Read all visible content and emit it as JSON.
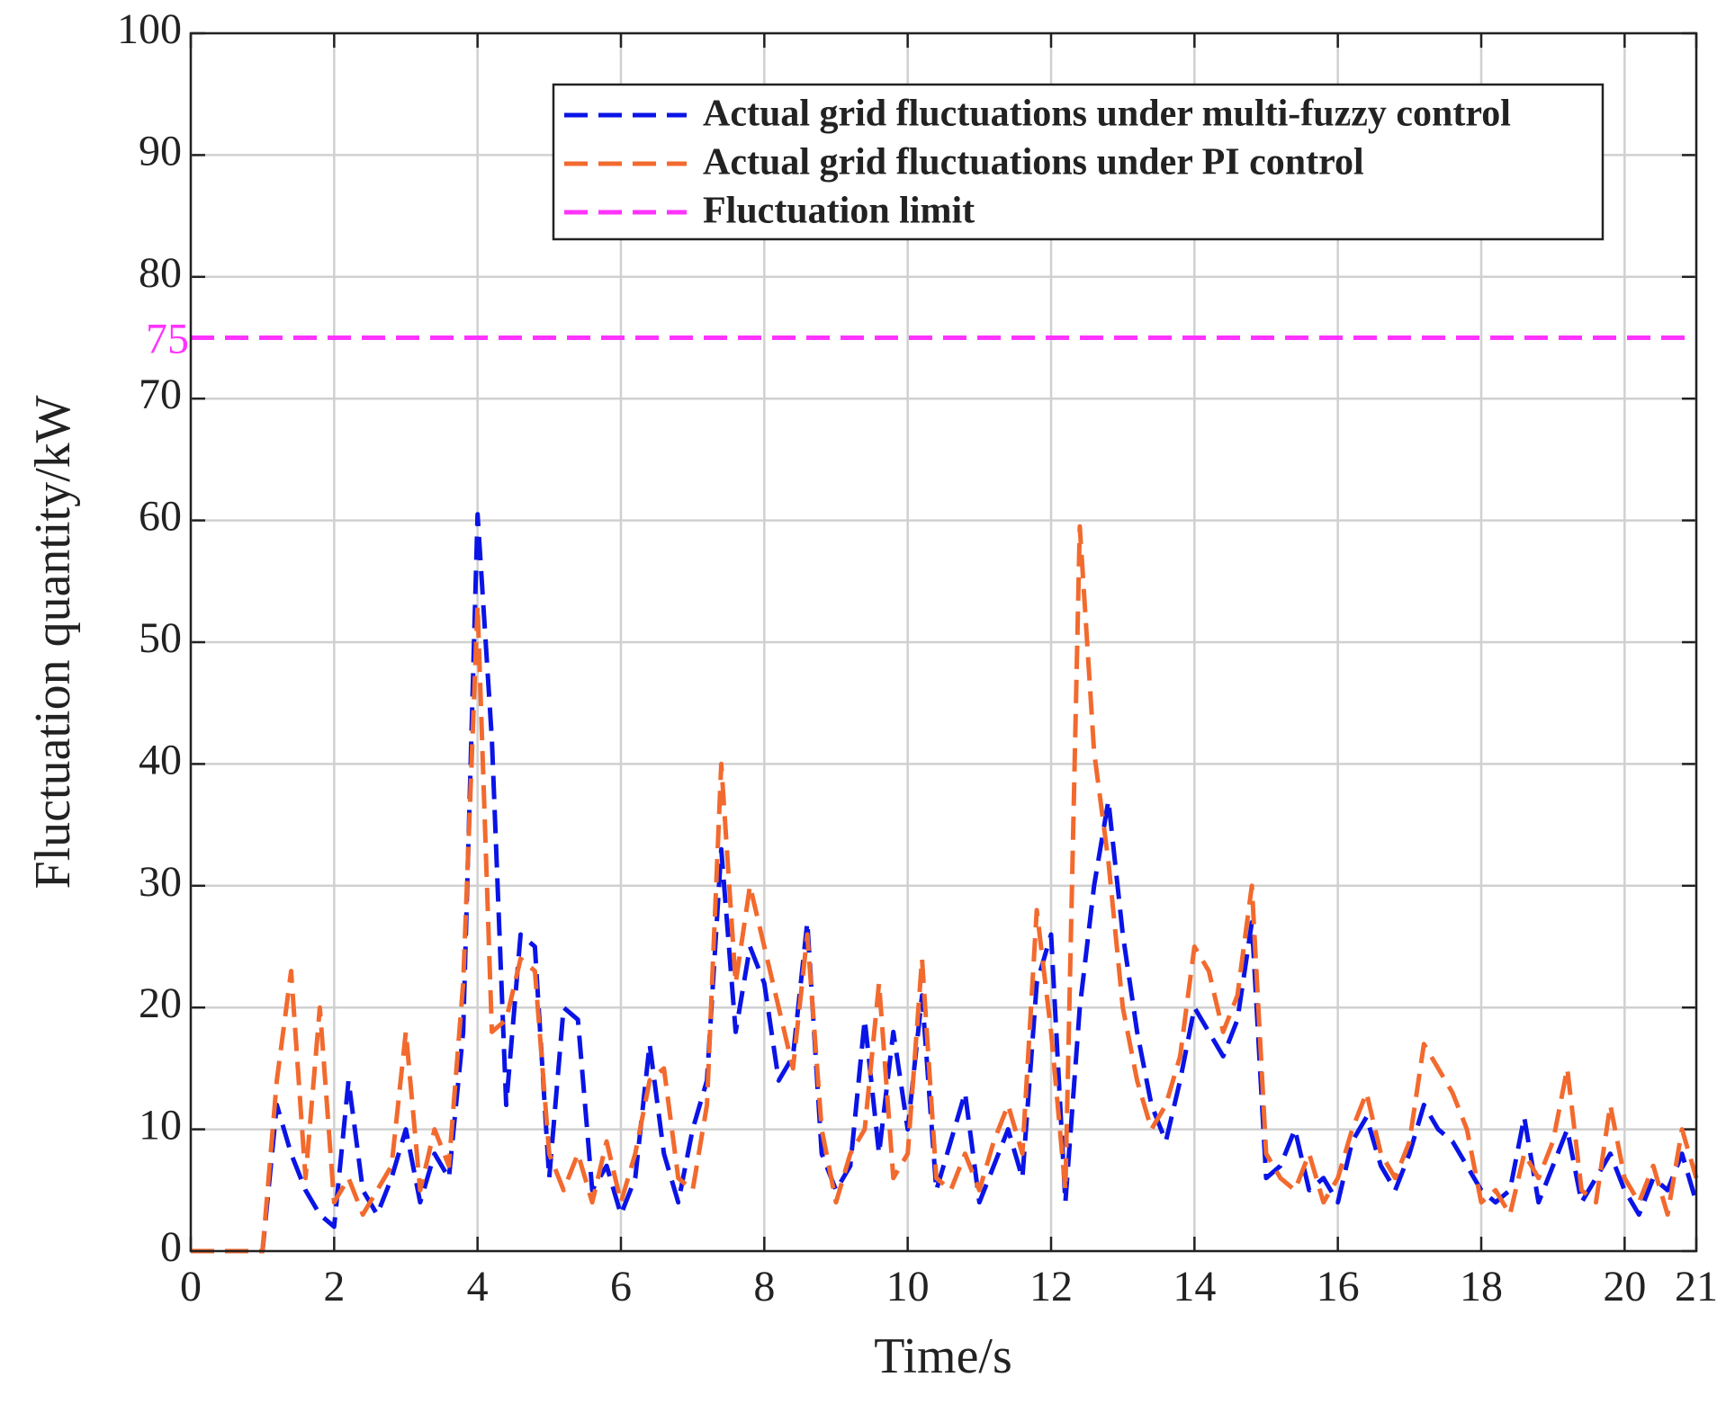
{
  "chart_data": {
    "type": "line",
    "xlabel": "Time/s",
    "ylabel": "Fluctuation quantity/kW",
    "x": [
      0,
      0.2,
      0.4,
      0.6,
      0.8,
      1.0,
      1.2,
      1.4,
      1.6,
      1.8,
      2.0,
      2.2,
      2.4,
      2.6,
      2.8,
      3.0,
      3.2,
      3.4,
      3.6,
      3.8,
      4.0,
      4.2,
      4.4,
      4.6,
      4.8,
      5.0,
      5.2,
      5.4,
      5.6,
      5.8,
      6.0,
      6.2,
      6.4,
      6.6,
      6.8,
      7.0,
      7.2,
      7.4,
      7.6,
      7.8,
      8.0,
      8.2,
      8.4,
      8.6,
      8.8,
      9.0,
      9.2,
      9.4,
      9.6,
      9.8,
      10.0,
      10.2,
      10.4,
      10.6,
      10.8,
      11.0,
      11.2,
      11.4,
      11.6,
      11.8,
      12.0,
      12.2,
      12.4,
      12.6,
      12.8,
      13.0,
      13.2,
      13.4,
      13.6,
      13.8,
      14.0,
      14.2,
      14.4,
      14.6,
      14.8,
      15.0,
      15.2,
      15.4,
      15.6,
      15.8,
      16.0,
      16.2,
      16.4,
      16.6,
      16.8,
      17.0,
      17.2,
      17.4,
      17.6,
      17.8,
      18.0,
      18.2,
      18.4,
      18.6,
      18.8,
      19.0,
      19.2,
      19.4,
      19.6,
      19.8,
      20.0,
      20.2,
      20.4,
      20.6,
      20.8,
      21.0
    ],
    "series": [
      {
        "name": "Actual grid fluctuations under multi-fuzzy control",
        "color": "#0a14e6",
        "values": [
          0,
          0,
          0,
          0,
          0,
          0,
          12,
          8,
          5,
          3,
          2,
          14,
          5,
          3,
          6,
          10,
          4,
          8,
          6,
          18,
          60.5,
          42,
          12,
          26,
          25,
          6,
          20,
          19,
          5,
          7,
          3,
          6,
          17,
          8,
          4,
          10,
          14,
          33,
          18,
          25,
          22,
          14,
          16,
          27,
          8,
          5,
          7,
          19,
          8,
          18,
          10,
          21,
          5,
          9,
          13,
          4,
          7,
          10,
          6,
          22,
          26,
          4,
          20,
          30,
          37,
          26,
          18,
          12,
          9,
          14,
          20,
          18,
          16,
          19,
          27,
          6,
          7,
          10,
          5,
          6,
          4,
          9,
          11,
          7,
          5,
          8,
          12,
          10,
          9,
          7,
          5,
          4,
          5,
          11,
          4,
          7,
          10,
          4,
          6,
          8,
          5,
          3,
          6,
          5,
          8,
          4
        ]
      },
      {
        "name": "Actual grid fluctuations under PI control",
        "color": "#f26a2e",
        "values": [
          0,
          0,
          0,
          0,
          0,
          0,
          14,
          23,
          6,
          20,
          4,
          6,
          3,
          5,
          7,
          18,
          5,
          10,
          7,
          22,
          53,
          18,
          19,
          24,
          23,
          8,
          5,
          8,
          4,
          9,
          4,
          8,
          14,
          15,
          6,
          5,
          12,
          40,
          22,
          30,
          25,
          20,
          15,
          26,
          10,
          4,
          8,
          10,
          22,
          6,
          8,
          24,
          6,
          5,
          8,
          5,
          9,
          12,
          8,
          28,
          18,
          5,
          59.5,
          41,
          32,
          20,
          14,
          10,
          12,
          16,
          25,
          23,
          18,
          21,
          30,
          8,
          6,
          5,
          8,
          4,
          6,
          10,
          13,
          8,
          6,
          9,
          17,
          15,
          13,
          10,
          4,
          5,
          3,
          8,
          6,
          9,
          15,
          5,
          4,
          12,
          6,
          4,
          7,
          3,
          10,
          6
        ]
      },
      {
        "name": "Fluctuation limit",
        "color": "#ff33ff",
        "x": [
          0,
          21
        ],
        "values": [
          75,
          75
        ]
      }
    ],
    "annotations": [
      {
        "text": "75",
        "y": 75,
        "color": "#ff33ff"
      }
    ],
    "xlim": [
      0,
      21
    ],
    "xticks": [
      0,
      2,
      4,
      6,
      8,
      10,
      12,
      14,
      16,
      18,
      20,
      21
    ],
    "ylim": [
      0,
      100
    ],
    "yticks": [
      0,
      10,
      20,
      30,
      40,
      50,
      60,
      70,
      80,
      90,
      100
    ],
    "grid": true,
    "legend": "upper right"
  }
}
